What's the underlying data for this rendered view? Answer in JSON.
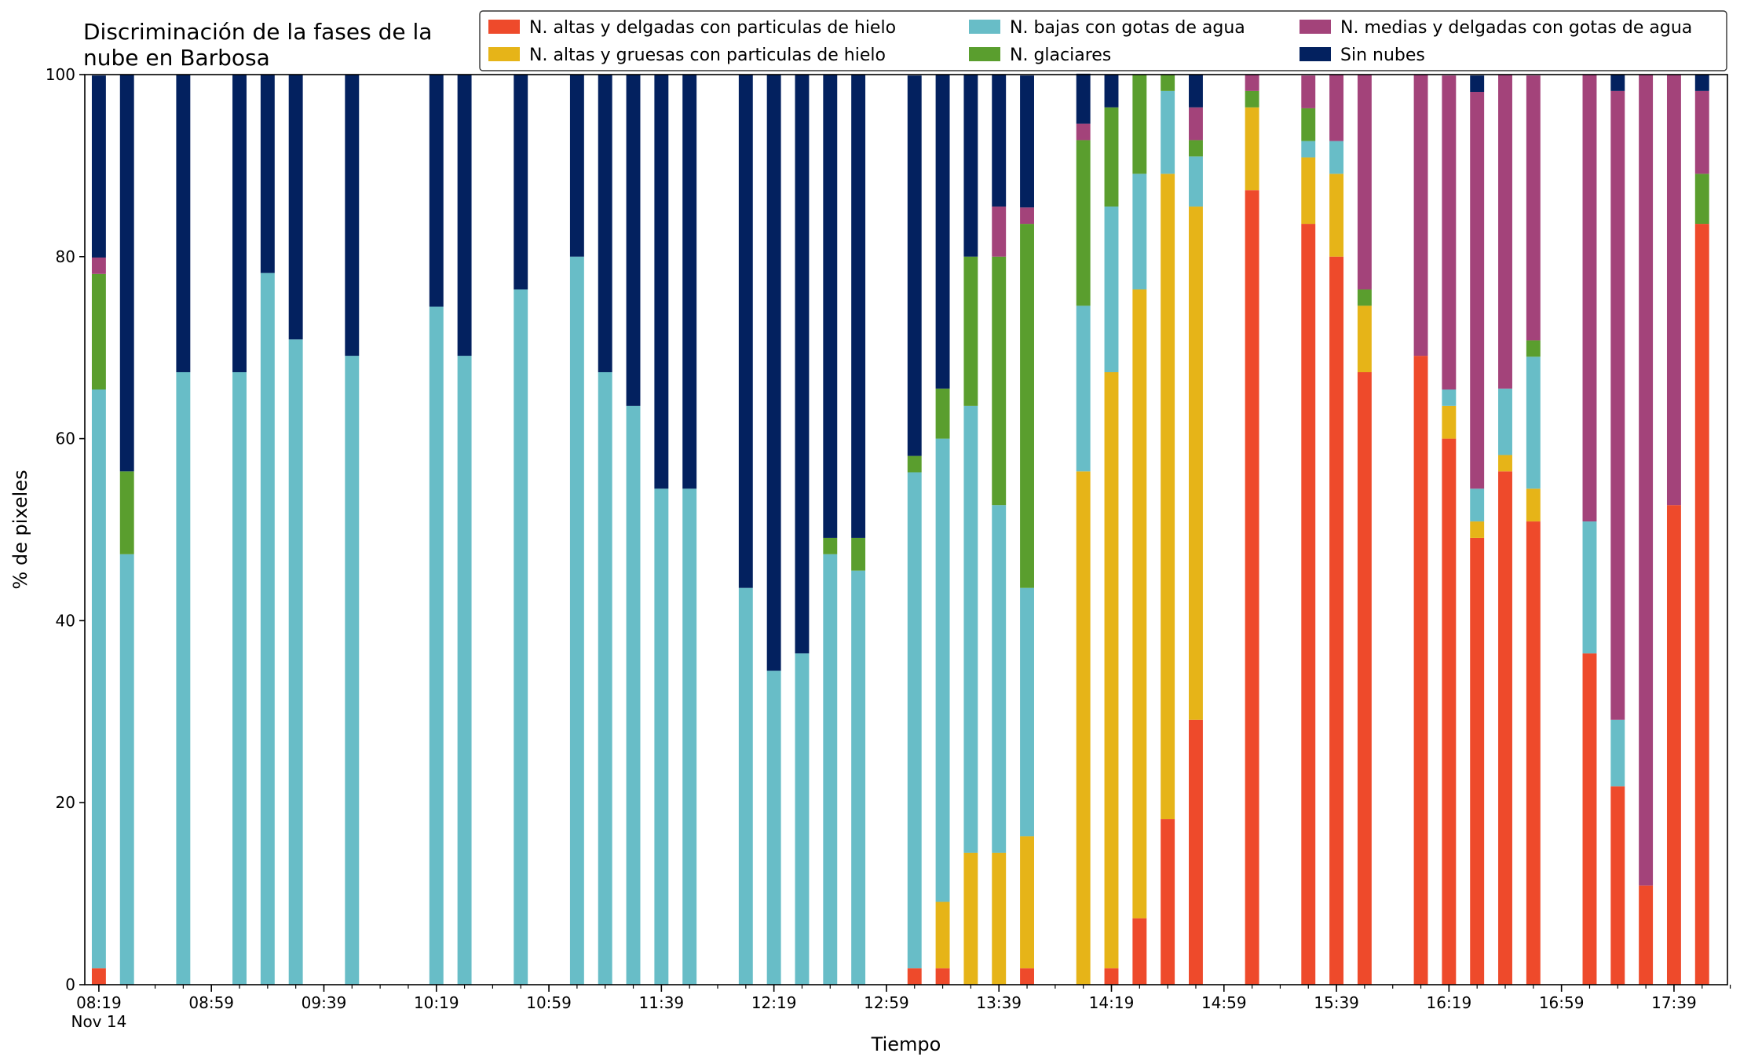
{
  "chart_data": {
    "type": "bar",
    "stacked": true,
    "title": "Discriminación de la fases de la nube en Barbosa",
    "title_lines": [
      "Discriminación de la fases de la",
      "nube en Barbosa"
    ],
    "xlabel": "Tiempo",
    "ylabel": "% de pixeles",
    "ylim": [
      0,
      100
    ],
    "yticks": [
      0,
      20,
      40,
      60,
      80,
      100
    ],
    "x_start": "08:19",
    "x_end": "17:59",
    "x_step_minutes": 10,
    "x_tick_labels": [
      "08:19",
      "08:59",
      "09:39",
      "10:19",
      "10:59",
      "11:39",
      "12:19",
      "12:59",
      "13:39",
      "14:19",
      "14:59",
      "15:39",
      "16:19",
      "16:59",
      "17:39"
    ],
    "x_date_label": "Nov 14",
    "legend_position": "top-right",
    "legend_columns": 3,
    "x": [
      "08:19",
      "08:29",
      "08:49",
      "09:09",
      "09:19",
      "09:29",
      "09:49",
      "10:19",
      "10:29",
      "10:49",
      "11:09",
      "11:19",
      "11:29",
      "11:39",
      "11:49",
      "12:09",
      "12:19",
      "12:29",
      "12:39",
      "12:49",
      "13:09",
      "13:19",
      "13:29",
      "13:39",
      "13:49",
      "14:09",
      "14:19",
      "14:29",
      "14:39",
      "14:49",
      "15:09",
      "15:29",
      "15:39",
      "15:49",
      "16:09",
      "16:19",
      "16:29",
      "16:39",
      "16:49",
      "17:09",
      "17:19",
      "17:29",
      "17:39",
      "17:49"
    ],
    "series": [
      {
        "name": "N. altas y delgadas con particulas de hielo",
        "color": "#ee4a2b",
        "values": [
          1.8,
          0,
          0,
          0,
          0,
          0,
          0,
          0,
          0,
          0,
          0,
          0,
          0,
          0,
          0,
          0,
          0,
          0,
          0,
          0,
          1.8,
          1.8,
          0,
          0,
          1.8,
          0,
          1.8,
          7.3,
          18.2,
          29.1,
          87.3,
          83.6,
          80.0,
          67.3,
          69.1,
          60.0,
          49.1,
          56.4,
          50.9,
          36.4,
          21.8,
          10.9,
          52.7,
          83.6
        ]
      },
      {
        "name": "N. altas y gruesas con particulas de hielo",
        "color": "#e6b418",
        "values": [
          0,
          0,
          0,
          0,
          0,
          0,
          0,
          0,
          0,
          0,
          0,
          0,
          0,
          0,
          0,
          0,
          0,
          0,
          0,
          0,
          0,
          7.3,
          14.5,
          14.5,
          14.5,
          56.4,
          65.5,
          69.1,
          70.9,
          56.4,
          9.1,
          7.3,
          9.1,
          7.3,
          0,
          3.6,
          1.8,
          1.8,
          3.6,
          0,
          0,
          0,
          0,
          0
        ]
      },
      {
        "name": "N. bajas con gotas de agua",
        "color": "#68bdc7",
        "values": [
          63.6,
          47.3,
          67.3,
          67.3,
          78.2,
          70.9,
          69.1,
          74.5,
          69.1,
          76.4,
          80.0,
          67.3,
          63.6,
          54.5,
          54.5,
          43.6,
          34.5,
          36.4,
          47.3,
          45.5,
          54.5,
          50.9,
          49.1,
          38.2,
          27.3,
          18.2,
          18.2,
          12.7,
          9.1,
          5.5,
          0,
          1.8,
          3.6,
          0,
          0,
          1.8,
          3.6,
          7.3,
          14.5,
          14.5,
          7.3,
          0,
          0,
          0
        ]
      },
      {
        "name": "N. glaciares",
        "color": "#5a9e2e",
        "values": [
          12.7,
          9.1,
          0,
          0,
          0,
          0,
          0,
          0,
          0,
          0,
          0,
          0,
          0,
          0,
          0,
          0,
          0,
          0,
          1.8,
          3.6,
          1.8,
          5.5,
          16.4,
          27.3,
          40.0,
          18.2,
          10.9,
          10.9,
          1.8,
          1.8,
          1.8,
          3.6,
          0,
          1.8,
          0,
          0,
          0,
          0,
          1.8,
          0,
          0,
          0,
          0,
          5.5
        ]
      },
      {
        "name": "N. medias y delgadas con gotas de agua",
        "color": "#a3437a",
        "values": [
          1.8,
          0,
          0,
          0,
          0,
          0,
          0,
          0,
          0,
          0,
          0,
          0,
          0,
          0,
          0,
          0,
          0,
          0,
          0,
          0,
          0,
          0,
          0,
          5.5,
          1.8,
          1.8,
          0,
          0,
          0,
          3.6,
          1.8,
          3.6,
          7.3,
          23.6,
          30.9,
          34.5,
          43.6,
          34.5,
          29.1,
          49.1,
          69.1,
          89.1,
          47.3,
          9.1
        ]
      },
      {
        "name": "Sin nubes",
        "color": "#03215f",
        "values": [
          20.0,
          43.6,
          32.7,
          32.7,
          21.8,
          29.1,
          30.9,
          25.5,
          30.9,
          23.6,
          20.0,
          32.7,
          36.4,
          45.5,
          45.5,
          56.4,
          65.5,
          63.6,
          50.9,
          50.9,
          41.8,
          34.5,
          20.0,
          14.5,
          14.5,
          5.5,
          3.6,
          0,
          0,
          3.6,
          0,
          0,
          0,
          0,
          0,
          0,
          1.8,
          0,
          0,
          0,
          1.8,
          0,
          0,
          1.8
        ]
      }
    ]
  }
}
